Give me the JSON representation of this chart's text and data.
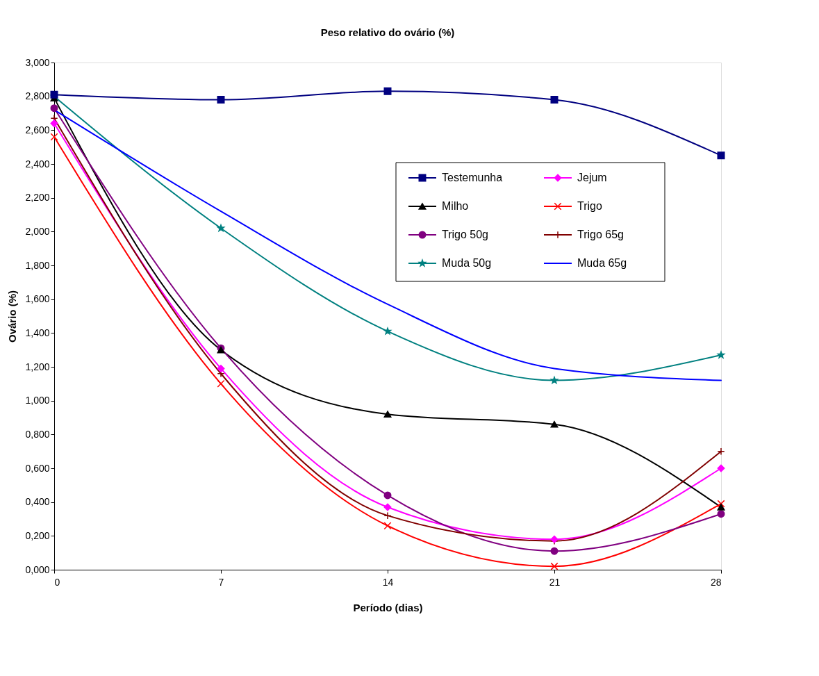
{
  "chart_data": {
    "type": "line",
    "title": "Peso relativo do ovário (%)",
    "xlabel": "Período (dias)",
    "ylabel": "Ovário (%)",
    "x": [
      0,
      7,
      14,
      21,
      28
    ],
    "xlim": [
      0,
      28
    ],
    "xticks": [
      0,
      7,
      14,
      21,
      28
    ],
    "ylim": [
      0,
      3
    ],
    "yticks": [
      {
        "value": 0,
        "label": "0,000"
      },
      {
        "value": 0.2,
        "label": "0,200"
      },
      {
        "value": 0.4,
        "label": "0,400"
      },
      {
        "value": 0.6,
        "label": "0,600"
      },
      {
        "value": 0.8,
        "label": "0,800"
      },
      {
        "value": 1.0,
        "label": "1,000"
      },
      {
        "value": 1.2,
        "label": "1,200"
      },
      {
        "value": 1.4,
        "label": "1,400"
      },
      {
        "value": 1.6,
        "label": "1,600"
      },
      {
        "value": 1.8,
        "label": "1,800"
      },
      {
        "value": 2.0,
        "label": "2,000"
      },
      {
        "value": 2.2,
        "label": "2,200"
      },
      {
        "value": 2.4,
        "label": "2,400"
      },
      {
        "value": 2.6,
        "label": "2,600"
      },
      {
        "value": 2.8,
        "label": "2,800"
      },
      {
        "value": 3.0,
        "label": "3,000"
      }
    ],
    "grid": false,
    "legend": "top right",
    "line_style": "solid",
    "series": [
      {
        "name": "Testemunha",
        "color": "#000080",
        "marker": "square",
        "values": [
          2.81,
          2.78,
          2.83,
          2.78,
          2.45
        ]
      },
      {
        "name": "Jejum",
        "color": "#ff00ff",
        "marker": "diamond",
        "values": [
          2.64,
          1.19,
          0.37,
          0.18,
          0.6
        ]
      },
      {
        "name": "Milho",
        "color": "#000000",
        "marker": "triangle",
        "values": [
          2.79,
          1.3,
          0.92,
          0.86,
          0.37
        ]
      },
      {
        "name": "Trigo",
        "color": "#ff0000",
        "marker": "cross",
        "values": [
          2.56,
          1.1,
          0.26,
          0.02,
          0.39
        ]
      },
      {
        "name": "Trigo 50g",
        "color": "#800080",
        "marker": "circle",
        "values": [
          2.73,
          1.31,
          0.44,
          0.11,
          0.33
        ]
      },
      {
        "name": "Trigo 65g",
        "color": "#800000",
        "marker": "plus",
        "values": [
          2.67,
          1.16,
          0.32,
          0.17,
          0.7
        ]
      },
      {
        "name": "Muda 50g",
        "color": "#008080",
        "marker": "star",
        "values": [
          2.8,
          2.02,
          1.41,
          1.12,
          1.27
        ]
      },
      {
        "name": "Muda 65g",
        "color": "#0000ff",
        "marker": "none",
        "values": [
          2.72,
          2.12,
          1.57,
          1.19,
          1.12
        ]
      }
    ]
  }
}
